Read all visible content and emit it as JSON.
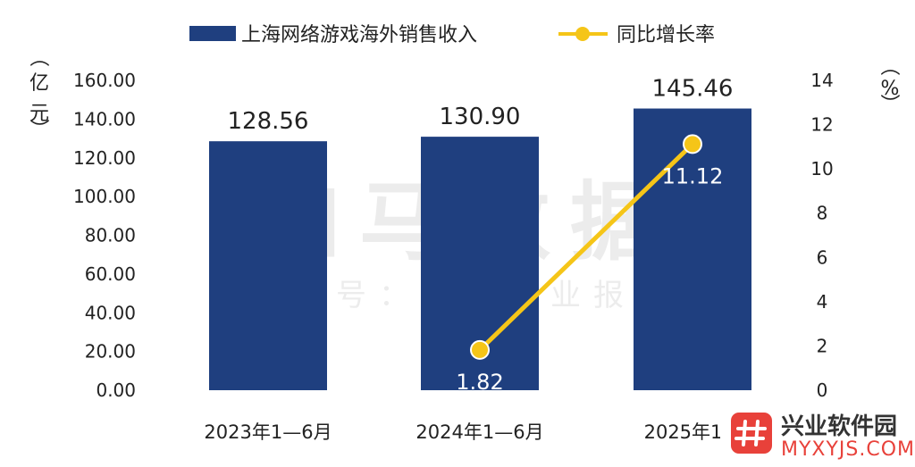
{
  "chart_data": {
    "type": "bar",
    "categories": [
      "2023年1—6月",
      "2024年1—6月",
      "2025年1—"
    ],
    "series": [
      {
        "name": "上海网络游戏海外销售收入",
        "kind": "bar",
        "axis": "left",
        "values": [
          128.56,
          130.9,
          145.46
        ],
        "labels": [
          "128.56",
          "130.90",
          "145.46"
        ],
        "color": "#1f3f7f"
      },
      {
        "name": "同比增长率",
        "kind": "line",
        "axis": "right",
        "values": [
          null,
          1.82,
          11.12
        ],
        "labels": [
          "",
          "1.82",
          "11.12"
        ],
        "color": "#f5c518"
      }
    ],
    "y_left": {
      "unit": [
        "（",
        "亿",
        "元",
        "）"
      ],
      "range": [
        0,
        160
      ],
      "ticks": [
        "160.00",
        "140.00",
        "120.00",
        "100.00",
        "80.00",
        "60.00",
        "40.00",
        "20.00",
        "0.00"
      ]
    },
    "y_right": {
      "unit": [
        "（",
        "%",
        "）"
      ],
      "range": [
        0,
        14
      ],
      "ticks": [
        "14",
        "12",
        "10",
        "8",
        "6",
        "4",
        "2",
        "0"
      ]
    },
    "legend_position": "top-center",
    "grid": false
  },
  "watermark": {
    "main": "伽马数据",
    "sub": "微信号：游戏产业报告"
  },
  "badge": {
    "icon": "hash-icon",
    "title": "兴业软件园",
    "subtitle": "MYXYJS.COM",
    "color": "#e8413a"
  }
}
